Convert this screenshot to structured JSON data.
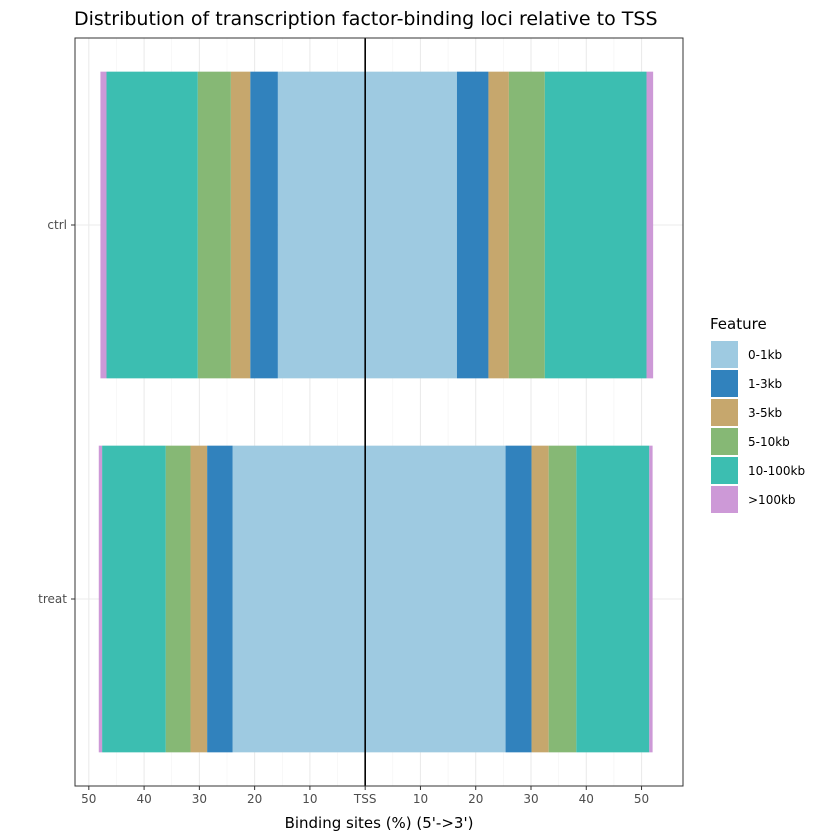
{
  "chart_data": {
    "type": "bar",
    "orientation": "horizontal-diverging",
    "title": "Distribution of transcription factor-binding loci relative to TSS",
    "xlabel": "Binding sites (%) (5'->3')",
    "ylabel": "",
    "xlim": [
      -52.5,
      57.5
    ],
    "x_ticks": [
      {
        "value": -50,
        "label": "50"
      },
      {
        "value": -40,
        "label": "40"
      },
      {
        "value": -30,
        "label": "30"
      },
      {
        "value": -20,
        "label": "20"
      },
      {
        "value": -10,
        "label": "10"
      },
      {
        "value": 0,
        "label": "TSS"
      },
      {
        "value": 10,
        "label": "10"
      },
      {
        "value": 20,
        "label": "20"
      },
      {
        "value": 30,
        "label": "30"
      },
      {
        "value": 40,
        "label": "40"
      },
      {
        "value": 50,
        "label": "50"
      }
    ],
    "categories": [
      "ctrl",
      "treat"
    ],
    "grid": true,
    "legend_position": "right",
    "legend_title": "Feature",
    "features": [
      {
        "name": "0-1kb",
        "color": "#9ECAE1"
      },
      {
        "name": "1-3kb",
        "color": "#3182BD"
      },
      {
        "name": "3-5kb",
        "color": "#C6A76D"
      },
      {
        "name": "5-10kb",
        "color": "#86B875"
      },
      {
        "name": "10-100kb",
        "color": "#3CBEB1"
      },
      {
        "name": ">100kb",
        "color": "#CD99D7"
      }
    ],
    "series": [
      {
        "category": "ctrl",
        "upstream": [
          15.8,
          5.0,
          3.5,
          6.0,
          16.5,
          1.1
        ],
        "downstream": [
          16.6,
          5.7,
          3.7,
          6.5,
          18.4,
          1.2
        ]
      },
      {
        "category": "treat",
        "upstream": [
          24.0,
          4.6,
          3.0,
          4.5,
          11.5,
          0.6
        ],
        "downstream": [
          25.4,
          4.7,
          3.1,
          5.0,
          13.2,
          0.6
        ]
      }
    ],
    "reference_line": {
      "value": 0,
      "color": "#000000"
    }
  }
}
